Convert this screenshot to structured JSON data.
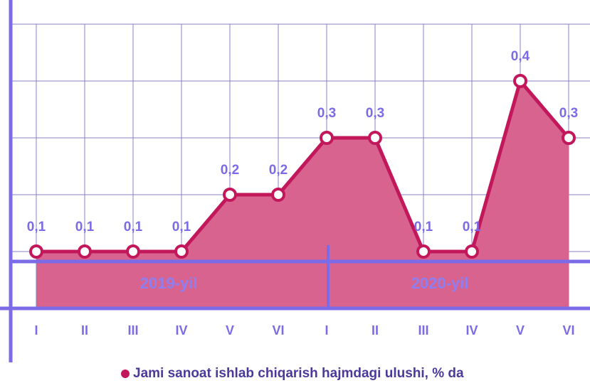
{
  "chart_data": {
    "type": "area",
    "categories": [
      "I",
      "II",
      "III",
      "IV",
      "V",
      "VI",
      "I",
      "II",
      "III",
      "IV",
      "V",
      "VI"
    ],
    "series": [
      {
        "name": "Jami sanoat ishlab chiqarish hajmdagi ulushi, % da",
        "color": "#c2185b",
        "fill": "#d8638f",
        "values": [
          0.1,
          0.1,
          0.1,
          0.1,
          0.2,
          0.2,
          0.3,
          0.3,
          0.1,
          0.1,
          0.4,
          0.3
        ],
        "value_labels": [
          "0,1",
          "0,1",
          "0,1",
          "0,1",
          "0,2",
          "0,2",
          "0,3",
          "0,3",
          "0,1",
          "0,1",
          "0,4",
          "0,3"
        ]
      }
    ],
    "annotations": [
      "2019-yil",
      "2020-yil"
    ],
    "ylim": [
      0,
      0.5
    ],
    "yticks": [
      0.1,
      0.2,
      0.3,
      0.4,
      0.5
    ],
    "grid": true
  }
}
